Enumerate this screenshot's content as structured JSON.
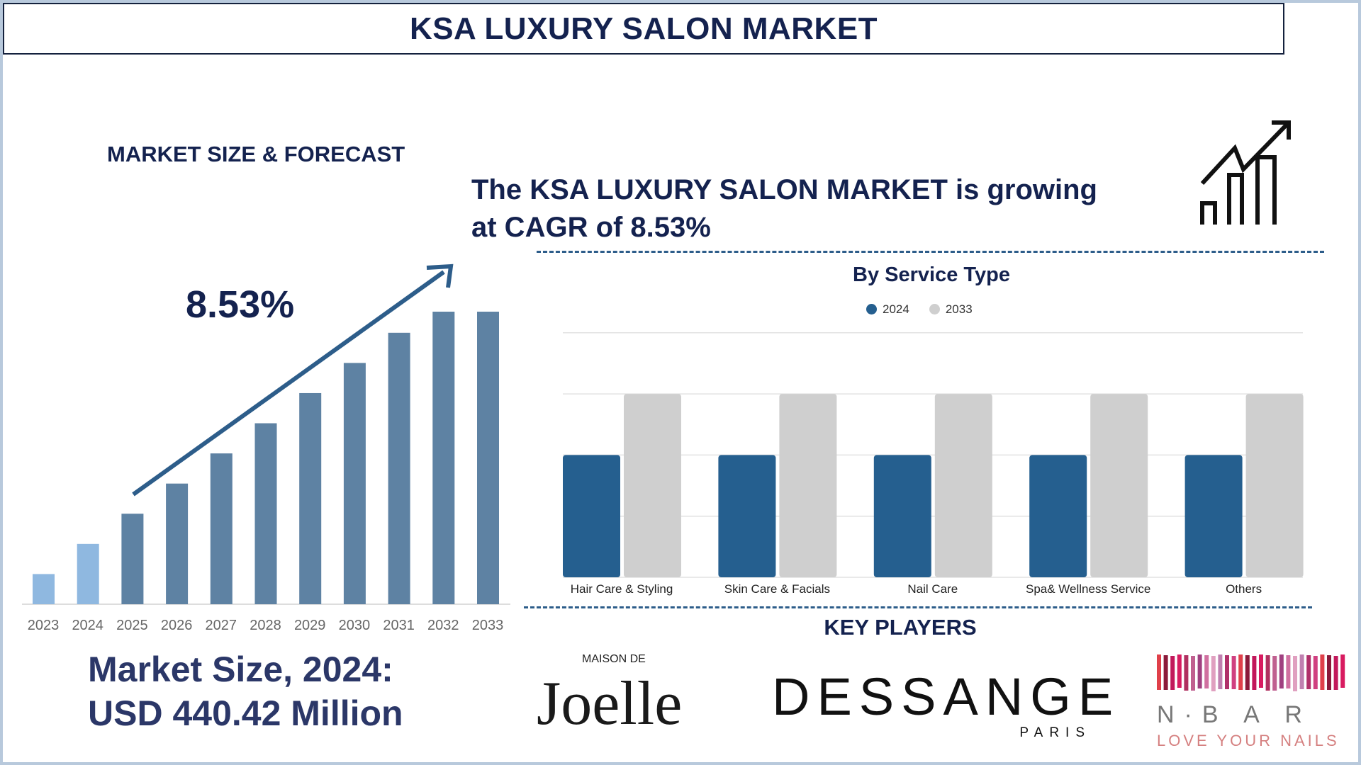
{
  "header": {
    "title": "KSA LUXURY SALON MARKET"
  },
  "left": {
    "section_title": "MARKET SIZE & FORECAST",
    "cagr_label": "8.53%",
    "market_size_line1": "Market Size, 2024:",
    "market_size_line2": "USD 440.42 Million"
  },
  "headline": {
    "line1": "The KSA LUXURY SALON MARKET is growing",
    "line2": "at CAGR of 8.53%",
    "icon": "growth-chart-icon"
  },
  "chart_data": [
    {
      "type": "bar",
      "categories": [
        "2023",
        "2024",
        "2025",
        "2026",
        "2027",
        "2028",
        "2029",
        "2030",
        "2031",
        "2032",
        "2033"
      ],
      "values": [
        1,
        2,
        3,
        4,
        5,
        6,
        7,
        8,
        9,
        9.7,
        9.7
      ],
      "colors": [
        "#8fb8e0",
        "#8fb8e0",
        "#5e82a3",
        "#5e82a3",
        "#5e82a3",
        "#5e82a3",
        "#5e82a3",
        "#5e82a3",
        "#5e82a3",
        "#5e82a3",
        "#5e82a3"
      ],
      "annotation": "8.53%"
    },
    {
      "type": "bar",
      "title": "By Service Type",
      "categories": [
        "Hair Care & Styling",
        "Skin Care & Facials",
        "Nail Care",
        "Spa& Wellness Service",
        "Others"
      ],
      "series": [
        {
          "name": "2024",
          "values": [
            2,
            2,
            2,
            2,
            2
          ],
          "color": "#255f8f"
        },
        {
          "name": "2033",
          "values": [
            3,
            3,
            3,
            3,
            3
          ],
          "color": "#cfcfcf"
        }
      ],
      "ylim": [
        0,
        4
      ],
      "grid": true,
      "legend": "top"
    }
  ],
  "key_players": {
    "title": "KEY PLAYERS",
    "logos": [
      {
        "name": "MAISON DE Joelle",
        "top": "MAISON DE",
        "main": "Joelle"
      },
      {
        "name": "DESSANGE PARIS",
        "main": "DESSANGE",
        "sub": "PARIS"
      },
      {
        "name": "N·BAR LOVE YOUR NAILS",
        "main": "N·B A R",
        "sub": "LOVE YOUR NAILS"
      }
    ]
  }
}
